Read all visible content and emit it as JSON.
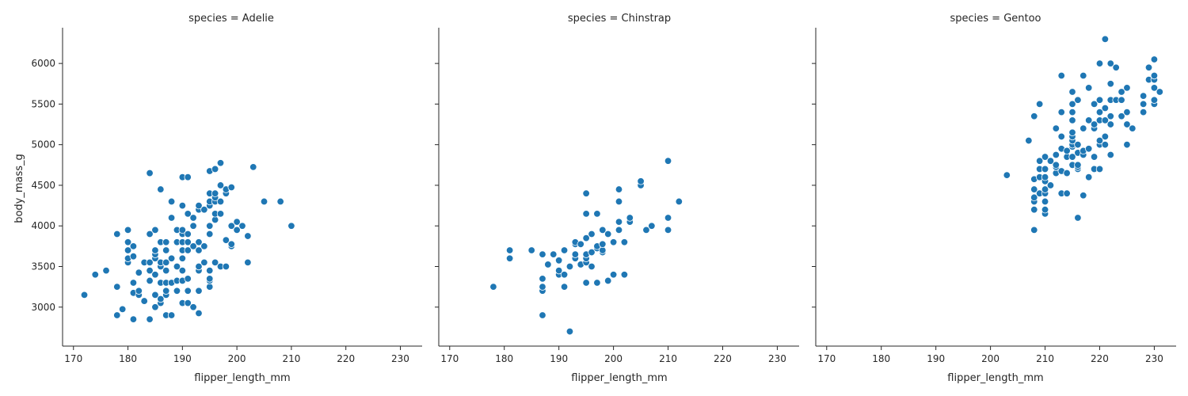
{
  "chart_data": {
    "type": "scatter",
    "xlabel": "flipper_length_mm",
    "ylabel": "body_mass_g",
    "xlim": [
      168,
      234
    ],
    "ylim": [
      2520,
      6440
    ],
    "xticks": [
      170,
      180,
      190,
      200,
      210,
      220,
      230
    ],
    "yticks": [
      3000,
      3500,
      4000,
      4500,
      5000,
      5500,
      6000
    ],
    "grid": false,
    "marker_color": "#1f77b4",
    "facets": [
      {
        "title": "species = Adelie",
        "points": [
          [
            172,
            3150
          ],
          [
            174,
            3400
          ],
          [
            176,
            3450
          ],
          [
            178,
            2900
          ],
          [
            178,
            3250
          ],
          [
            178,
            3900
          ],
          [
            179,
            2975
          ],
          [
            180,
            3550
          ],
          [
            180,
            3600
          ],
          [
            180,
            3700
          ],
          [
            180,
            3800
          ],
          [
            180,
            3950
          ],
          [
            181,
            2850
          ],
          [
            181,
            3175
          ],
          [
            181,
            3300
          ],
          [
            181,
            3625
          ],
          [
            181,
            3750
          ],
          [
            182,
            3150
          ],
          [
            182,
            3200
          ],
          [
            182,
            3425
          ],
          [
            183,
            3075
          ],
          [
            183,
            3550
          ],
          [
            184,
            2850
          ],
          [
            184,
            3325
          ],
          [
            184,
            3450
          ],
          [
            184,
            3550
          ],
          [
            184,
            3900
          ],
          [
            184,
            4650
          ],
          [
            185,
            3000
          ],
          [
            185,
            3150
          ],
          [
            185,
            3400
          ],
          [
            185,
            3600
          ],
          [
            185,
            3650
          ],
          [
            185,
            3700
          ],
          [
            185,
            3950
          ],
          [
            186,
            3050
          ],
          [
            186,
            3100
          ],
          [
            186,
            3300
          ],
          [
            186,
            3500
          ],
          [
            186,
            3550
          ],
          [
            186,
            3800
          ],
          [
            186,
            4450
          ],
          [
            187,
            2900
          ],
          [
            187,
            3150
          ],
          [
            187,
            3200
          ],
          [
            187,
            3300
          ],
          [
            187,
            3450
          ],
          [
            187,
            3550
          ],
          [
            187,
            3700
          ],
          [
            187,
            3800
          ],
          [
            188,
            2900
          ],
          [
            188,
            3300
          ],
          [
            188,
            3600
          ],
          [
            188,
            4100
          ],
          [
            188,
            4300
          ],
          [
            189,
            3200
          ],
          [
            189,
            3325
          ],
          [
            189,
            3500
          ],
          [
            189,
            3800
          ],
          [
            189,
            3950
          ],
          [
            190,
            3050
          ],
          [
            190,
            3325
          ],
          [
            190,
            3450
          ],
          [
            190,
            3600
          ],
          [
            190,
            3700
          ],
          [
            190,
            3800
          ],
          [
            190,
            3900
          ],
          [
            190,
            3950
          ],
          [
            190,
            4250
          ],
          [
            190,
            4600
          ],
          [
            191,
            3050
          ],
          [
            191,
            3200
          ],
          [
            191,
            3350
          ],
          [
            191,
            3700
          ],
          [
            191,
            3800
          ],
          [
            191,
            3900
          ],
          [
            191,
            4150
          ],
          [
            191,
            4600
          ],
          [
            192,
            3000
          ],
          [
            192,
            3750
          ],
          [
            192,
            4000
          ],
          [
            192,
            4100
          ],
          [
            193,
            2925
          ],
          [
            193,
            3200
          ],
          [
            193,
            3450
          ],
          [
            193,
            3500
          ],
          [
            193,
            3700
          ],
          [
            193,
            3800
          ],
          [
            193,
            4200
          ],
          [
            193,
            4250
          ],
          [
            194,
            3550
          ],
          [
            194,
            3750
          ],
          [
            194,
            4200
          ],
          [
            195,
            3250
          ],
          [
            195,
            3325
          ],
          [
            195,
            3350
          ],
          [
            195,
            3450
          ],
          [
            195,
            3900
          ],
          [
            195,
            4000
          ],
          [
            195,
            4250
          ],
          [
            195,
            4300
          ],
          [
            195,
            4400
          ],
          [
            195,
            4675
          ],
          [
            196,
            3550
          ],
          [
            196,
            4075
          ],
          [
            196,
            4150
          ],
          [
            196,
            4300
          ],
          [
            196,
            4350
          ],
          [
            196,
            4400
          ],
          [
            196,
            4700
          ],
          [
            197,
            3500
          ],
          [
            197,
            4150
          ],
          [
            197,
            4300
          ],
          [
            197,
            4500
          ],
          [
            197,
            4775
          ],
          [
            198,
            3500
          ],
          [
            198,
            3825
          ],
          [
            198,
            4400
          ],
          [
            198,
            4450
          ],
          [
            199,
            3750
          ],
          [
            199,
            3775
          ],
          [
            199,
            4000
          ],
          [
            199,
            4475
          ],
          [
            200,
            3950
          ],
          [
            200,
            4050
          ],
          [
            201,
            4000
          ],
          [
            202,
            3550
          ],
          [
            202,
            3875
          ],
          [
            203,
            4725
          ],
          [
            205,
            4300
          ],
          [
            208,
            4300
          ],
          [
            210,
            4000
          ]
        ]
      },
      {
        "title": "species = Chinstrap",
        "points": [
          [
            178,
            3250
          ],
          [
            181,
            3600
          ],
          [
            181,
            3700
          ],
          [
            185,
            3700
          ],
          [
            187,
            2900
          ],
          [
            187,
            3200
          ],
          [
            187,
            3250
          ],
          [
            187,
            3350
          ],
          [
            187,
            3650
          ],
          [
            188,
            3525
          ],
          [
            189,
            3650
          ],
          [
            190,
            3400
          ],
          [
            190,
            3450
          ],
          [
            190,
            3575
          ],
          [
            191,
            3250
          ],
          [
            191,
            3400
          ],
          [
            191,
            3700
          ],
          [
            192,
            2700
          ],
          [
            192,
            3500
          ],
          [
            193,
            3600
          ],
          [
            193,
            3650
          ],
          [
            193,
            3775
          ],
          [
            193,
            3800
          ],
          [
            194,
            3525
          ],
          [
            194,
            3775
          ],
          [
            195,
            3300
          ],
          [
            195,
            3550
          ],
          [
            195,
            3600
          ],
          [
            195,
            3650
          ],
          [
            195,
            3850
          ],
          [
            195,
            4150
          ],
          [
            195,
            4400
          ],
          [
            196,
            3500
          ],
          [
            196,
            3675
          ],
          [
            196,
            3900
          ],
          [
            197,
            3300
          ],
          [
            197,
            3725
          ],
          [
            197,
            3750
          ],
          [
            197,
            4150
          ],
          [
            198,
            3675
          ],
          [
            198,
            3700
          ],
          [
            198,
            3775
          ],
          [
            198,
            3950
          ],
          [
            199,
            3325
          ],
          [
            199,
            3900
          ],
          [
            200,
            3400
          ],
          [
            200,
            3800
          ],
          [
            201,
            3950
          ],
          [
            201,
            4050
          ],
          [
            201,
            4300
          ],
          [
            201,
            4450
          ],
          [
            202,
            3400
          ],
          [
            202,
            3800
          ],
          [
            203,
            4050
          ],
          [
            203,
            4100
          ],
          [
            205,
            4500
          ],
          [
            205,
            4550
          ],
          [
            206,
            3950
          ],
          [
            207,
            4000
          ],
          [
            210,
            3950
          ],
          [
            210,
            4100
          ],
          [
            210,
            4800
          ],
          [
            212,
            4300
          ]
        ]
      },
      {
        "title": "species = Gentoo",
        "points": [
          [
            203,
            4625
          ],
          [
            207,
            5050
          ],
          [
            208,
            3950
          ],
          [
            208,
            4200
          ],
          [
            208,
            4300
          ],
          [
            208,
            4350
          ],
          [
            208,
            4450
          ],
          [
            208,
            4575
          ],
          [
            208,
            5350
          ],
          [
            209,
            4400
          ],
          [
            209,
            4600
          ],
          [
            209,
            4700
          ],
          [
            209,
            4800
          ],
          [
            209,
            5500
          ],
          [
            210,
            4150
          ],
          [
            210,
            4200
          ],
          [
            210,
            4300
          ],
          [
            210,
            4400
          ],
          [
            210,
            4450
          ],
          [
            210,
            4550
          ],
          [
            210,
            4600
          ],
          [
            210,
            4700
          ],
          [
            210,
            4850
          ],
          [
            211,
            4500
          ],
          [
            211,
            4800
          ],
          [
            212,
            4650
          ],
          [
            212,
            4725
          ],
          [
            212,
            4750
          ],
          [
            212,
            4875
          ],
          [
            212,
            5200
          ],
          [
            213,
            4400
          ],
          [
            213,
            4675
          ],
          [
            213,
            4950
          ],
          [
            213,
            5100
          ],
          [
            213,
            5400
          ],
          [
            213,
            5850
          ],
          [
            214,
            4400
          ],
          [
            214,
            4650
          ],
          [
            214,
            4850
          ],
          [
            214,
            4925
          ],
          [
            215,
            4750
          ],
          [
            215,
            4850
          ],
          [
            215,
            4975
          ],
          [
            215,
            5000
          ],
          [
            215,
            5050
          ],
          [
            215,
            5100
          ],
          [
            215,
            5150
          ],
          [
            215,
            5300
          ],
          [
            215,
            5400
          ],
          [
            215,
            5500
          ],
          [
            215,
            5650
          ],
          [
            216,
            4100
          ],
          [
            216,
            4700
          ],
          [
            216,
            4725
          ],
          [
            216,
            4750
          ],
          [
            216,
            4900
          ],
          [
            216,
            5000
          ],
          [
            216,
            5550
          ],
          [
            217,
            4375
          ],
          [
            217,
            4875
          ],
          [
            217,
            4925
          ],
          [
            217,
            5200
          ],
          [
            217,
            5850
          ],
          [
            218,
            4600
          ],
          [
            218,
            4950
          ],
          [
            218,
            5300
          ],
          [
            218,
            5700
          ],
          [
            219,
            4700
          ],
          [
            219,
            4850
          ],
          [
            219,
            5200
          ],
          [
            219,
            5250
          ],
          [
            219,
            5500
          ],
          [
            220,
            4700
          ],
          [
            220,
            5000
          ],
          [
            220,
            5050
          ],
          [
            220,
            5300
          ],
          [
            220,
            5400
          ],
          [
            220,
            5550
          ],
          [
            220,
            6000
          ],
          [
            221,
            5000
          ],
          [
            221,
            5100
          ],
          [
            221,
            5300
          ],
          [
            221,
            5450
          ],
          [
            221,
            6300
          ],
          [
            222,
            4875
          ],
          [
            222,
            5250
          ],
          [
            222,
            5350
          ],
          [
            222,
            5550
          ],
          [
            222,
            5750
          ],
          [
            222,
            6000
          ],
          [
            223,
            5550
          ],
          [
            223,
            5950
          ],
          [
            224,
            5350
          ],
          [
            224,
            5550
          ],
          [
            224,
            5650
          ],
          [
            225,
            5000
          ],
          [
            225,
            5250
          ],
          [
            225,
            5400
          ],
          [
            225,
            5700
          ],
          [
            226,
            5200
          ],
          [
            228,
            5400
          ],
          [
            228,
            5500
          ],
          [
            228,
            5600
          ],
          [
            229,
            5950
          ],
          [
            229,
            5800
          ],
          [
            230,
            5500
          ],
          [
            230,
            5550
          ],
          [
            230,
            5700
          ],
          [
            230,
            5800
          ],
          [
            230,
            5850
          ],
          [
            230,
            6050
          ],
          [
            231,
            5650
          ]
        ]
      }
    ]
  }
}
